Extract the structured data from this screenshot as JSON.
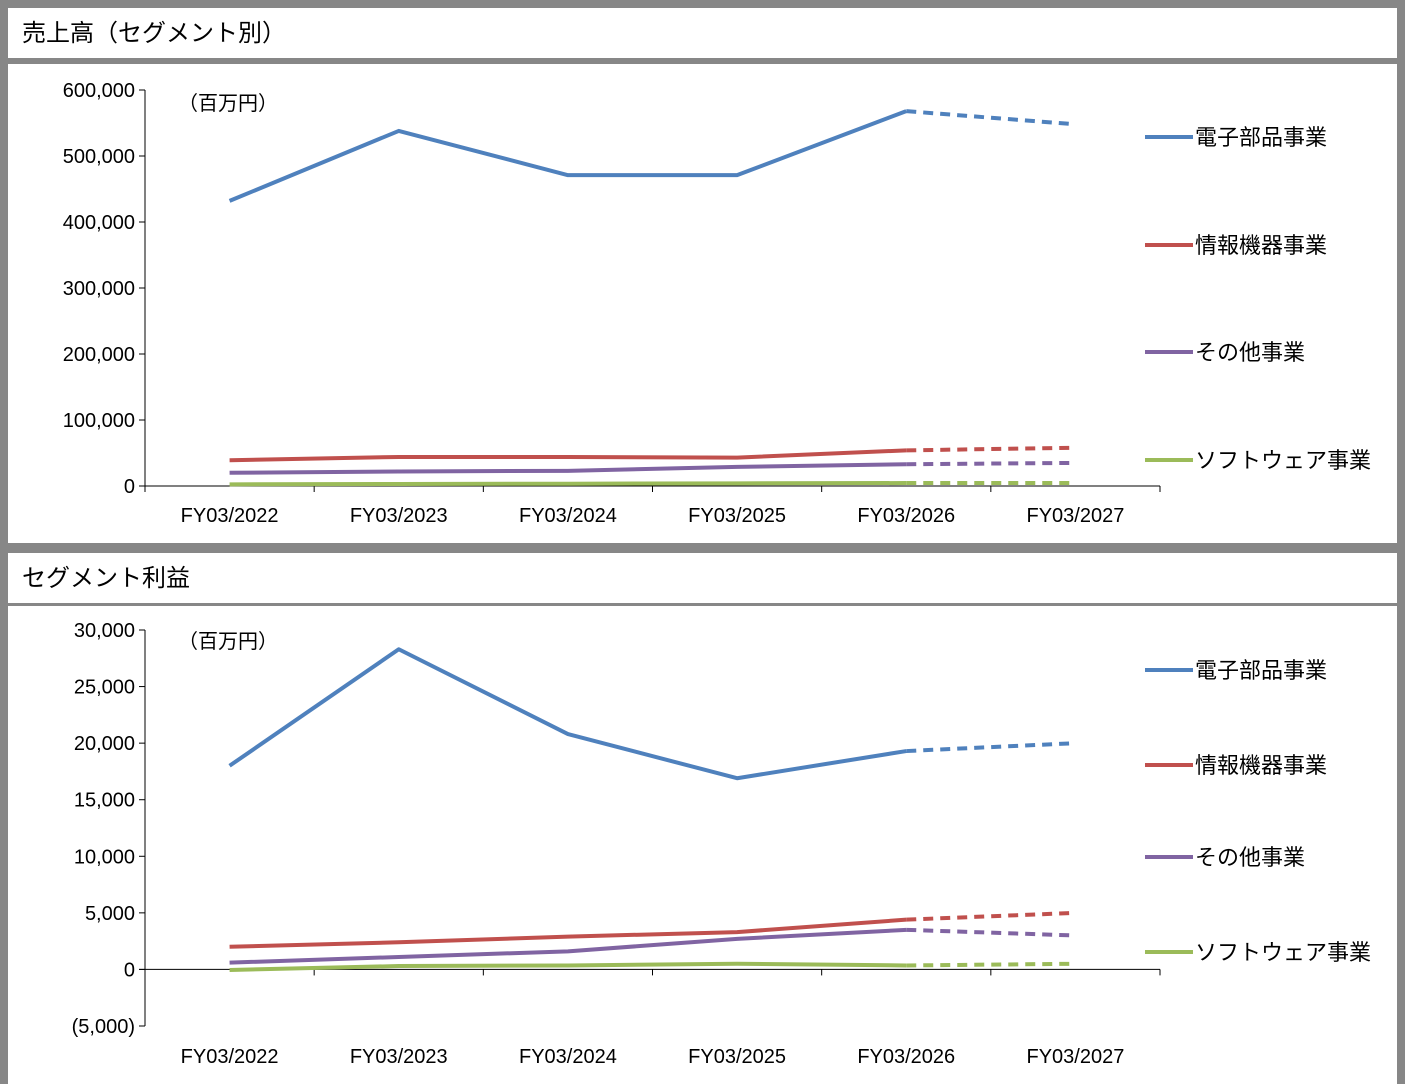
{
  "charts": {
    "revenue": {
      "title": "売上高（セグメント別）"
    },
    "profit": {
      "title": "セグメント利益"
    }
  },
  "chart_data": [
    {
      "type": "line",
      "title": "売上高（セグメント別）",
      "unit_label": "（百万円）",
      "categories": [
        "FY03/2022",
        "FY03/2023",
        "FY03/2024",
        "FY03/2025",
        "FY03/2026",
        "FY03/2027"
      ],
      "ylim": [
        0,
        600000
      ],
      "yticks": [
        0,
        100000,
        200000,
        300000,
        400000,
        500000,
        600000
      ],
      "ytick_labels": [
        "0",
        "100,000",
        "200,000",
        "300,000",
        "400,000",
        "500,000",
        "600,000"
      ],
      "forecast_from_index": 4,
      "grid": false,
      "legend_position": "right",
      "series": [
        {
          "name": "電子部品事業",
          "color": "#4F81BD",
          "values": [
            432000,
            538000,
            471000,
            471000,
            568000,
            548000
          ]
        },
        {
          "name": "情報機器事業",
          "color": "#C0504D",
          "values": [
            39000,
            44000,
            44000,
            43000,
            54000,
            58000
          ]
        },
        {
          "name": "その他事業",
          "color": "#8064A2",
          "values": [
            20000,
            22000,
            23000,
            29000,
            33000,
            35000
          ]
        },
        {
          "name": "ソフトウェア事業",
          "color": "#9BBB59",
          "values": [
            2500,
            3000,
            3500,
            4000,
            4500,
            4500
          ]
        }
      ]
    },
    {
      "type": "line",
      "title": "セグメント利益",
      "unit_label": "（百万円）",
      "categories": [
        "FY03/2022",
        "FY03/2023",
        "FY03/2024",
        "FY03/2025",
        "FY03/2026",
        "FY03/2027"
      ],
      "ylim": [
        -5000,
        30000
      ],
      "yticks": [
        -5000,
        0,
        5000,
        10000,
        15000,
        20000,
        25000,
        30000
      ],
      "ytick_labels": [
        "(5,000)",
        "0",
        "5,000",
        "10,000",
        "15,000",
        "20,000",
        "25,000",
        "30,000"
      ],
      "forecast_from_index": 4,
      "grid": false,
      "legend_position": "right",
      "series": [
        {
          "name": "電子部品事業",
          "color": "#4F81BD",
          "values": [
            18000,
            28300,
            20800,
            16900,
            19300,
            20000
          ]
        },
        {
          "name": "情報機器事業",
          "color": "#C0504D",
          "values": [
            2000,
            2400,
            2900,
            3300,
            4400,
            5000
          ]
        },
        {
          "name": "その他事業",
          "color": "#8064A2",
          "values": [
            600,
            1100,
            1600,
            2700,
            3500,
            3000
          ]
        },
        {
          "name": "ソフトウェア事業",
          "color": "#9BBB59",
          "values": [
            -50,
            300,
            350,
            500,
            350,
            500
          ]
        }
      ]
    }
  ]
}
